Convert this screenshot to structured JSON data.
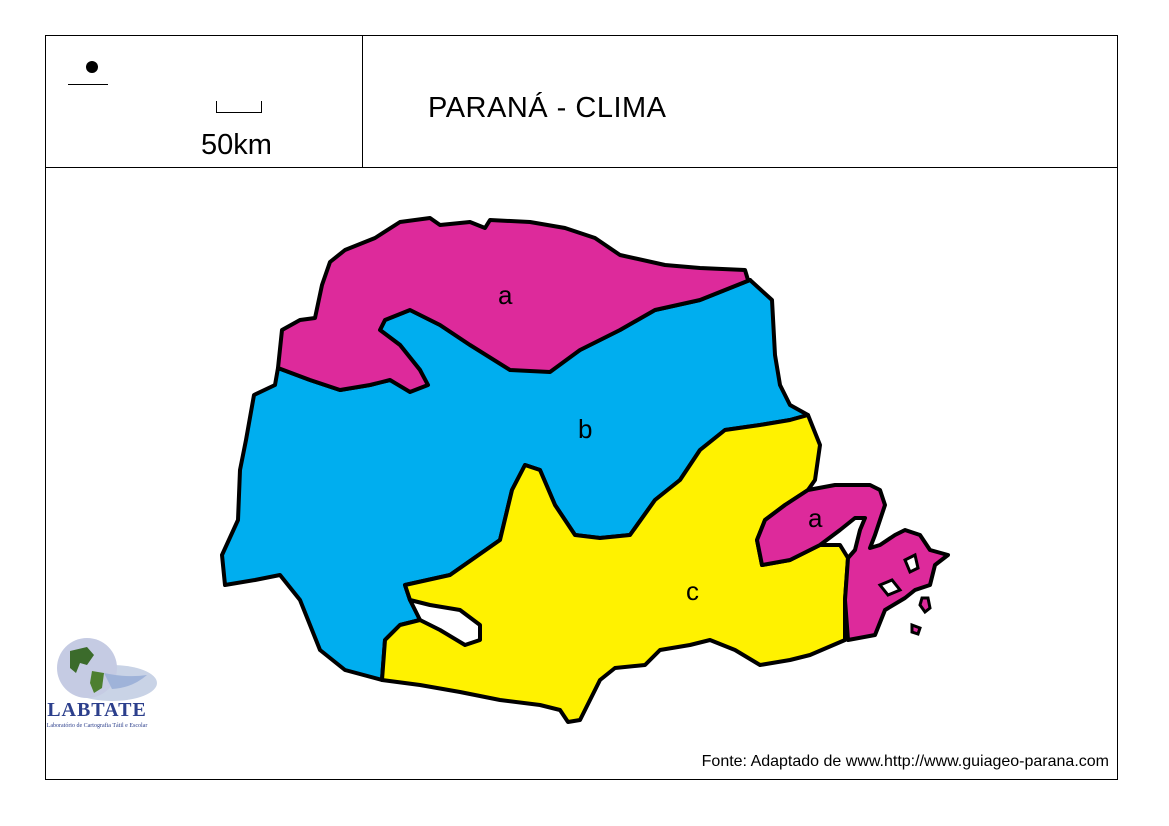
{
  "title": "PARANÁ - CLIMA",
  "scale": {
    "label": "50km"
  },
  "source": "Fonte: Adaptado de www.http://www.guiageo-parana.com",
  "logo": {
    "name": "LABTATE",
    "subtitle": "Laboratório de Cartografia Tátil e Escolar"
  },
  "regions": [
    {
      "id": "a-north",
      "label": "a",
      "color": "#dd2a9b"
    },
    {
      "id": "b-center",
      "label": "b",
      "color": "#00aeef"
    },
    {
      "id": "c-south",
      "label": "c",
      "color": "#fff200"
    },
    {
      "id": "a-east",
      "label": "a",
      "color": "#dd2a9b"
    }
  ]
}
